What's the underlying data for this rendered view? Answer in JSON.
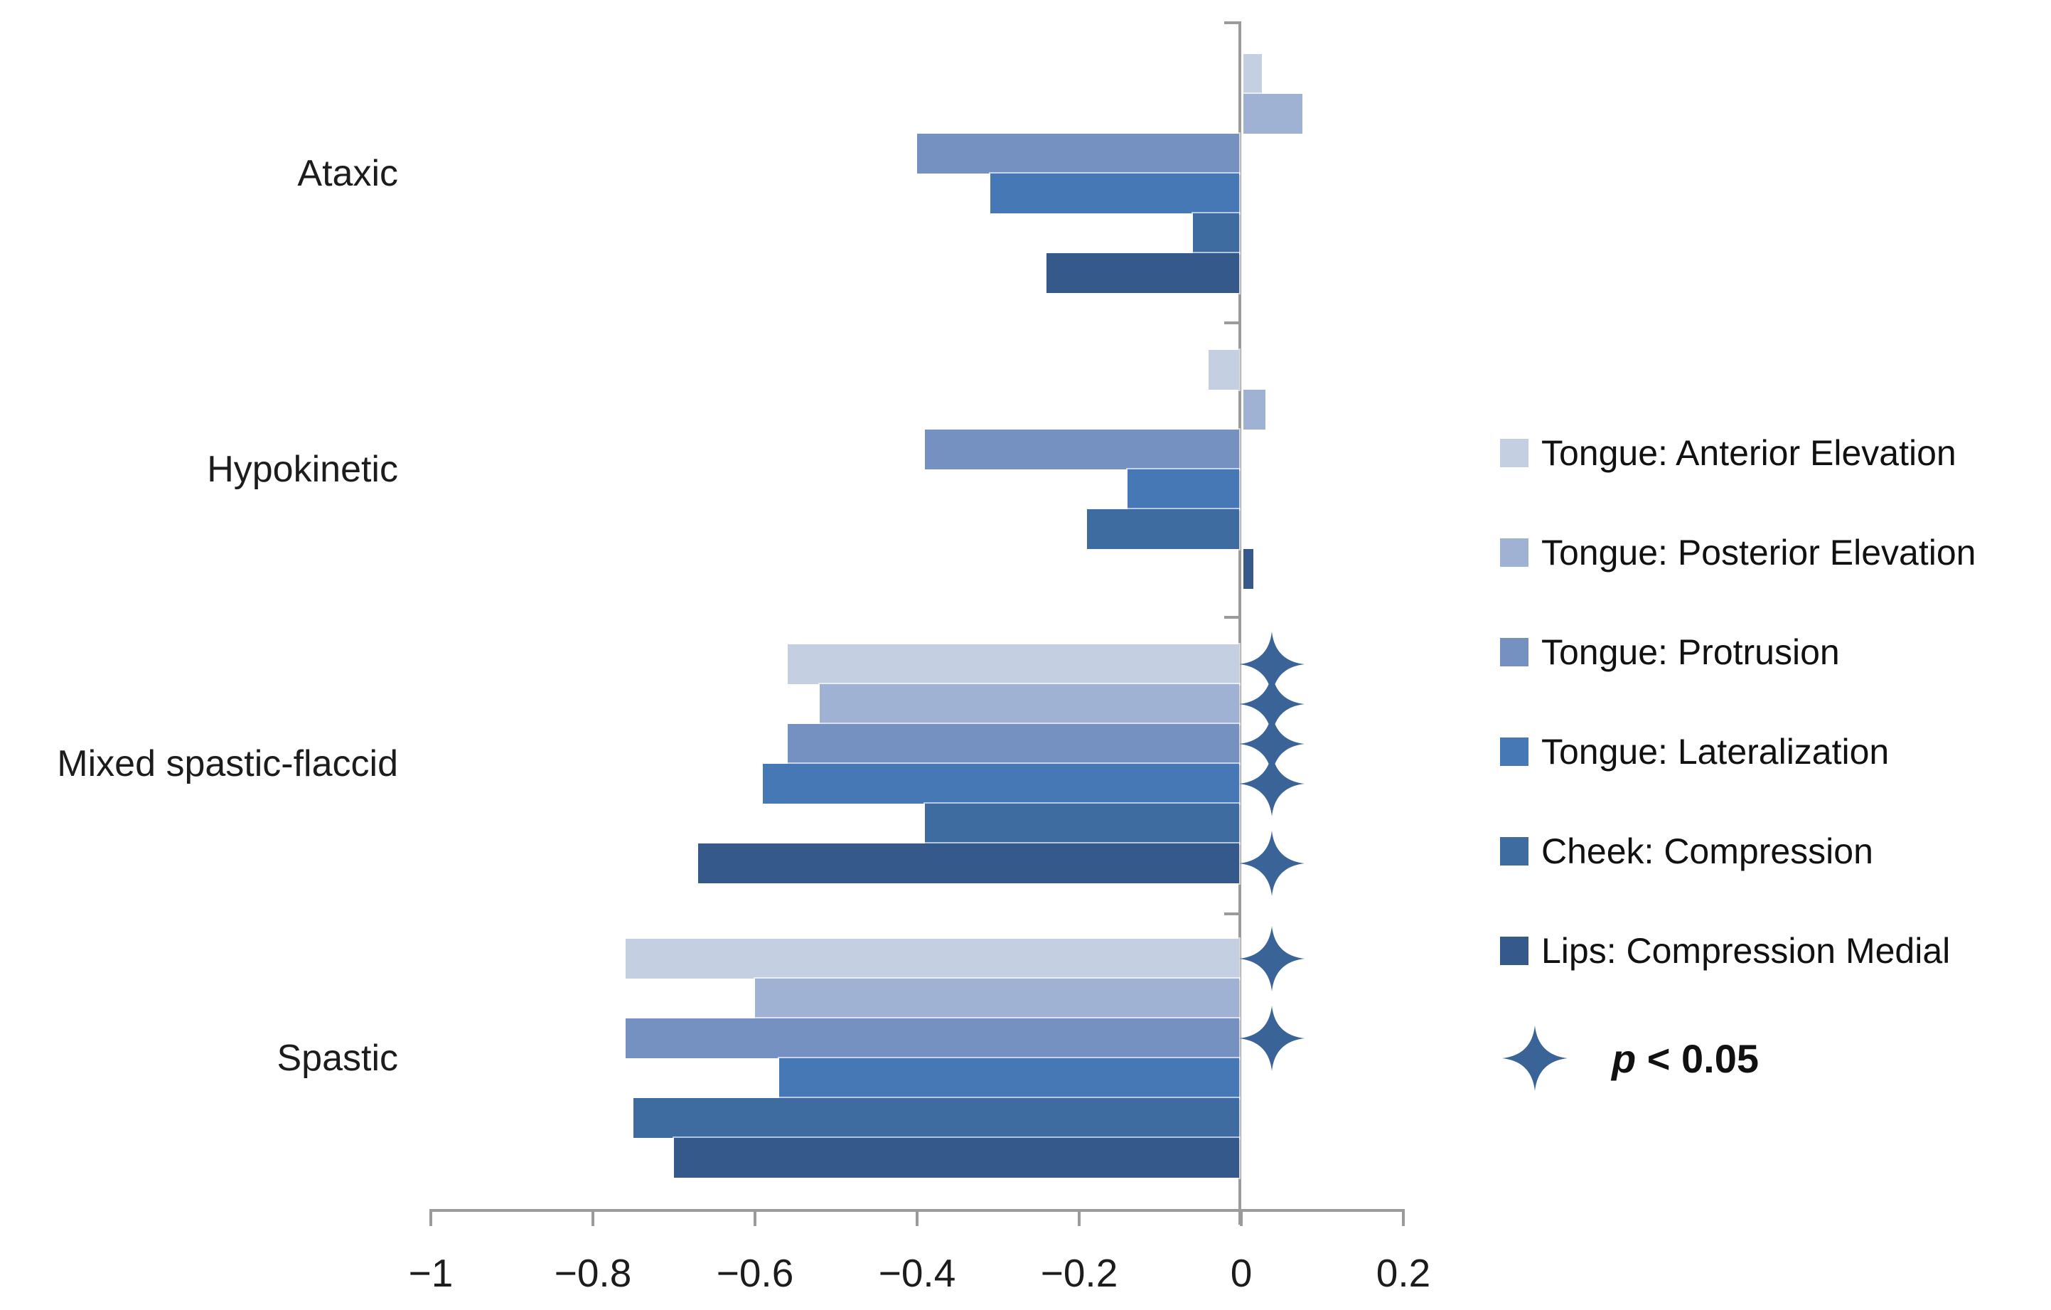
{
  "chart_data": {
    "type": "bar",
    "orientation": "horizontal",
    "title": "",
    "xlabel": "",
    "ylabel": "",
    "xlim": [
      -1,
      0.2
    ],
    "grid": false,
    "legend_position": "right",
    "categories": [
      "Ataxic",
      "Hypokinetic",
      "Mixed spastic-flaccid",
      "Spastic"
    ],
    "series": [
      {
        "name": "Tongue: Anterior Elevation",
        "color": "#C5CFE2",
        "values": [
          0.025,
          -0.04,
          -0.56,
          -0.76
        ],
        "significant": [
          false,
          false,
          true,
          true
        ]
      },
      {
        "name": "Tongue: Posterior Elevation",
        "color": "#A0B2D4",
        "values": [
          0.075,
          0.03,
          -0.52,
          -0.6
        ],
        "significant": [
          false,
          false,
          true,
          false
        ]
      },
      {
        "name": "Tongue: Protrusion",
        "color": "#7491C2",
        "values": [
          -0.4,
          -0.39,
          -0.56,
          -0.76
        ],
        "significant": [
          false,
          false,
          true,
          true
        ]
      },
      {
        "name": "Tongue: Lateralization",
        "color": "#4678B6",
        "values": [
          -0.31,
          -0.14,
          -0.59,
          -0.57
        ],
        "significant": [
          false,
          false,
          true,
          false
        ]
      },
      {
        "name": "Cheek: Compression",
        "color": "#3E6BA0",
        "values": [
          -0.06,
          -0.19,
          -0.39,
          -0.75
        ],
        "significant": [
          false,
          false,
          false,
          false
        ]
      },
      {
        "name": "Lips: Compression Medial",
        "color": "#36598C",
        "values": [
          -0.24,
          0.015,
          -0.67,
          -0.7
        ],
        "significant": [
          false,
          false,
          true,
          false
        ]
      }
    ],
    "x_ticks": [
      "−1",
      "−0.8",
      "−0.6",
      "−0.4",
      "−0.2",
      "0",
      "0.2"
    ],
    "x_tick_values": [
      -1,
      -0.8,
      -0.6,
      -0.4,
      -0.2,
      0,
      0.2
    ],
    "significance_note": {
      "p": "p",
      "rest": " < 0.05"
    },
    "colors": {
      "star": "#3A6398",
      "axis": "#9B9B9B",
      "text": "#1C1C1C"
    }
  }
}
